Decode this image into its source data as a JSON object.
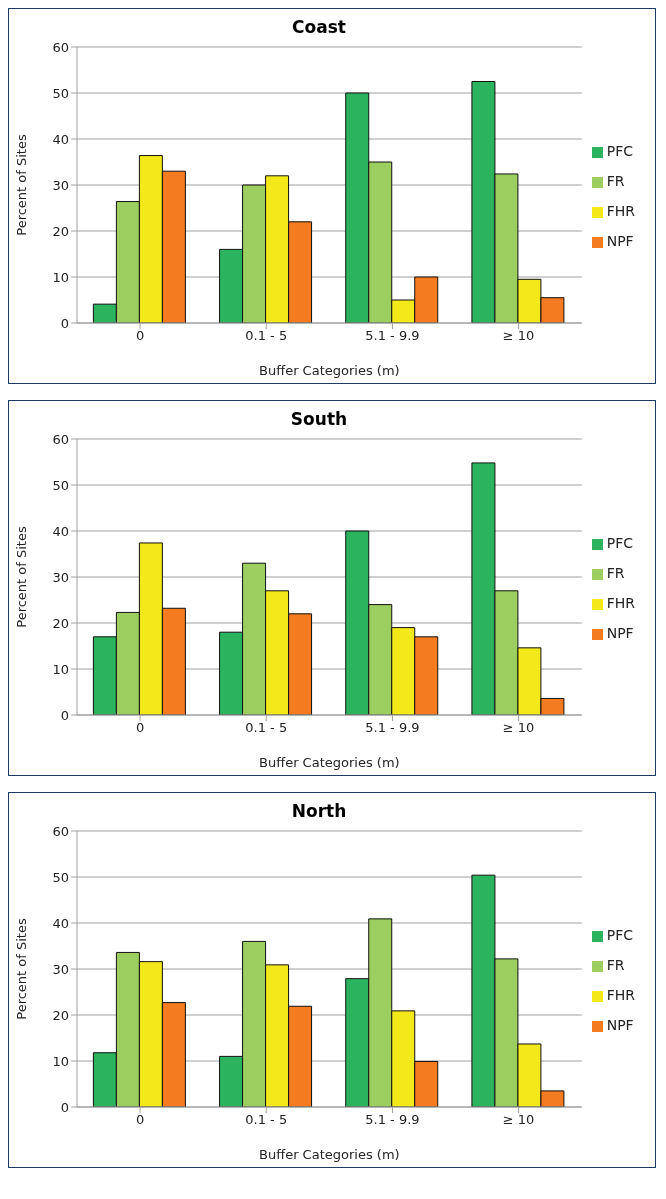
{
  "chart_data": [
    {
      "type": "bar",
      "title": "Coast",
      "xlabel": "Buffer Categories (m)",
      "ylabel": "Percent of Sites",
      "categories": [
        "0",
        "0.1 - 5",
        "5.1 - 9.9",
        "≥ 10"
      ],
      "series": [
        {
          "name": "PFC",
          "color": "#2bb35e",
          "values": [
            4.1,
            16,
            50,
            52.5
          ]
        },
        {
          "name": "FR",
          "color": "#9dcf60",
          "values": [
            26.4,
            30,
            35,
            32.4
          ]
        },
        {
          "name": "FHR",
          "color": "#f2e81a",
          "values": [
            36.4,
            32,
            5,
            9.5
          ]
        },
        {
          "name": "NPF",
          "color": "#f47b20",
          "values": [
            33,
            22,
            10,
            5.5
          ]
        }
      ],
      "ylim": [
        0,
        60
      ],
      "yticks": [
        0,
        10,
        20,
        30,
        40,
        50,
        60
      ],
      "grid": "y",
      "legend": "right"
    },
    {
      "type": "bar",
      "title": "South",
      "xlabel": "Buffer Categories (m)",
      "ylabel": "Percent of Sites",
      "categories": [
        "0",
        "0.1 - 5",
        "5.1 - 9.9",
        "≥ 10"
      ],
      "series": [
        {
          "name": "PFC",
          "color": "#2bb35e",
          "values": [
            17,
            18,
            40,
            54.8
          ]
        },
        {
          "name": "FR",
          "color": "#9dcf60",
          "values": [
            22.3,
            33,
            24,
            27
          ]
        },
        {
          "name": "FHR",
          "color": "#f2e81a",
          "values": [
            37.4,
            27,
            19,
            14.6
          ]
        },
        {
          "name": "NPF",
          "color": "#f47b20",
          "values": [
            23.2,
            22,
            17,
            3.6
          ]
        }
      ],
      "ylim": [
        0,
        60
      ],
      "yticks": [
        0,
        10,
        20,
        30,
        40,
        50,
        60
      ],
      "grid": "y",
      "legend": "right"
    },
    {
      "type": "bar",
      "title": "North",
      "xlabel": "Buffer Categories (m)",
      "ylabel": "Percent of Sites",
      "categories": [
        "0",
        "0.1 - 5",
        "5.1 - 9.9",
        "≥ 10"
      ],
      "series": [
        {
          "name": "PFC",
          "color": "#2bb35e",
          "values": [
            11.8,
            11,
            27.9,
            50.4
          ]
        },
        {
          "name": "FR",
          "color": "#9dcf60",
          "values": [
            33.6,
            36,
            40.9,
            32.2
          ]
        },
        {
          "name": "FHR",
          "color": "#f2e81a",
          "values": [
            31.6,
            30.9,
            20.9,
            13.7
          ]
        },
        {
          "name": "NPF",
          "color": "#f47b20",
          "values": [
            22.7,
            21.9,
            9.9,
            3.5
          ]
        }
      ],
      "ylim": [
        0,
        60
      ],
      "yticks": [
        0,
        10,
        20,
        30,
        40,
        50,
        60
      ],
      "grid": "y",
      "legend": "right"
    }
  ]
}
